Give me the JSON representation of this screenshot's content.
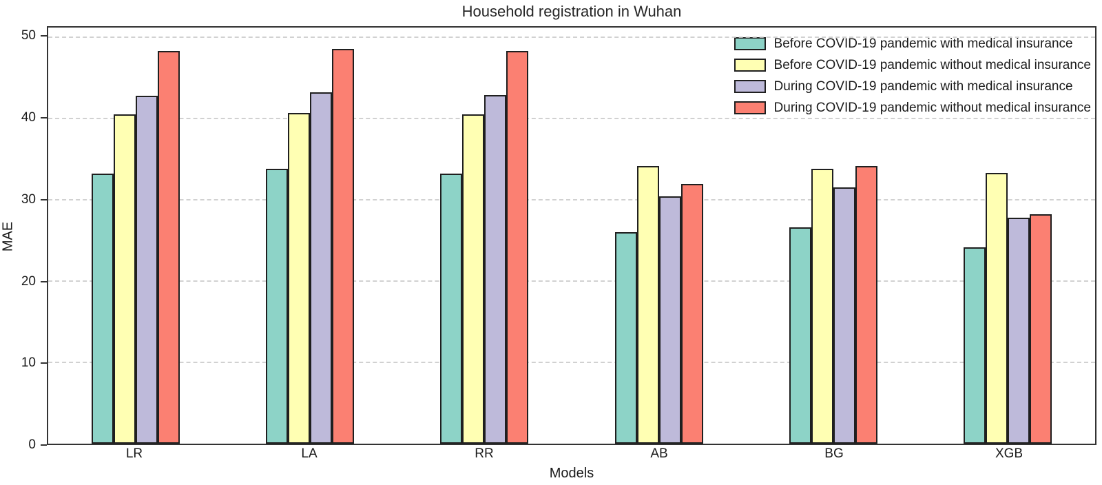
{
  "title": "Household registration in Wuhan",
  "chart_data": {
    "type": "bar",
    "title": "Household registration in Wuhan",
    "xlabel": "Models",
    "ylabel": "MAE",
    "categories": [
      "LR",
      "LA",
      "RR",
      "AB",
      "BG",
      "XGB"
    ],
    "series": [
      {
        "name": "Before COVID-19 pandemic with medical insurance",
        "color": "#8DD3C7",
        "values": [
          33.2,
          33.8,
          33.2,
          26.0,
          26.6,
          24.2
        ]
      },
      {
        "name": "Before COVID-19 pandemic without medical insurance",
        "color": "#FFFFB3",
        "values": [
          40.5,
          40.7,
          40.5,
          34.2,
          33.8,
          33.3
        ]
      },
      {
        "name": "During COVID-19 pandemic with medical insurance",
        "color": "#BEBADA",
        "values": [
          42.8,
          43.2,
          42.9,
          30.4,
          31.5,
          27.8
        ]
      },
      {
        "name": "During COVID-19 pandemic without medical insurance",
        "color": "#FB8072",
        "values": [
          48.3,
          48.6,
          48.3,
          32.0,
          34.2,
          28.2
        ]
      }
    ],
    "yticks": [
      0,
      10,
      20,
      30,
      40,
      50
    ],
    "ylim": [
      0,
      51.2
    ],
    "grid": "horizontal-dashed",
    "gridline_color": "#c9c9c9",
    "bar_edge_color": "#1f1f1f",
    "legend_position": "top-right-inside"
  }
}
